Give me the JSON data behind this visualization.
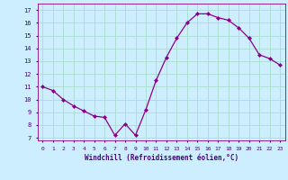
{
  "x": [
    0,
    1,
    2,
    3,
    4,
    5,
    6,
    7,
    8,
    9,
    10,
    11,
    12,
    13,
    14,
    15,
    16,
    17,
    18,
    19,
    20,
    21,
    22,
    23
  ],
  "y": [
    11.0,
    10.7,
    10.0,
    9.5,
    9.1,
    8.7,
    8.6,
    7.2,
    8.1,
    7.2,
    9.2,
    11.5,
    13.3,
    14.8,
    16.0,
    16.7,
    16.7,
    16.4,
    16.2,
    15.6,
    14.8,
    13.5,
    13.2,
    12.7
  ],
  "line_color": "#8b008b",
  "marker": "D",
  "marker_size": 2.0,
  "background_color": "#cceeff",
  "grid_color": "#aaddcc",
  "xlabel": "Windchill (Refroidissement éolien,°C)",
  "ylabel_ticks": [
    7,
    8,
    9,
    10,
    11,
    12,
    13,
    14,
    15,
    16,
    17
  ],
  "xlabel_ticks": [
    0,
    1,
    2,
    3,
    4,
    5,
    6,
    7,
    8,
    9,
    10,
    11,
    12,
    13,
    14,
    15,
    16,
    17,
    18,
    19,
    20,
    21,
    22,
    23
  ],
  "ylim": [
    6.8,
    17.5
  ],
  "xlim": [
    -0.5,
    23.5
  ]
}
